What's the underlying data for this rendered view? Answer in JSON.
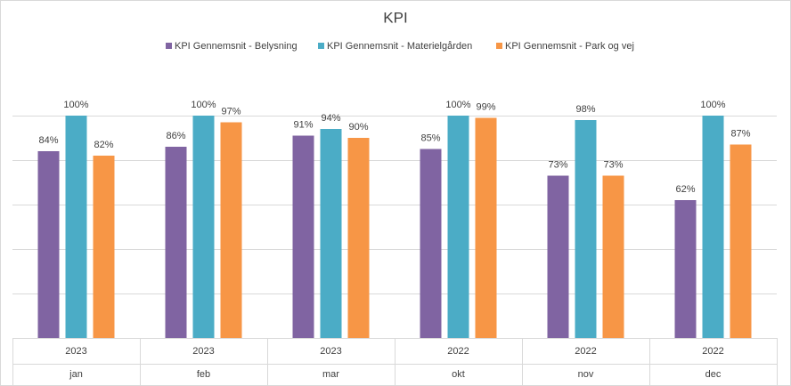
{
  "chart_data": {
    "type": "bar",
    "title": "KPI",
    "categories": [
      "jan",
      "feb",
      "mar",
      "okt",
      "nov",
      "dec"
    ],
    "category_groups": [
      "2023",
      "2023",
      "2023",
      "2022",
      "2022",
      "2022"
    ],
    "series": [
      {
        "name": "KPI Gennemsnit - Belysning",
        "color": "#8064a2",
        "values": [
          84,
          86,
          91,
          85,
          73,
          62
        ],
        "value_labels": [
          "84%",
          "86%",
          "91%",
          "85%",
          "73%",
          "62%"
        ]
      },
      {
        "name": "KPI Gennemsnit - Materielgården",
        "color": "#4bacc6",
        "values": [
          100,
          100,
          94,
          100,
          98,
          100
        ],
        "value_labels": [
          "100%",
          "100%",
          "94%",
          "100%",
          "98%",
          "100%"
        ]
      },
      {
        "name": "KPI Gennemsnit - Park og vej",
        "color": "#f79646",
        "values": [
          82,
          97,
          90,
          99,
          73,
          87
        ],
        "value_labels": [
          "82%",
          "97%",
          "90%",
          "99%",
          "73%",
          "87%"
        ]
      }
    ],
    "ylim": [
      0,
      100
    ],
    "yticks": [
      0,
      20,
      40,
      60,
      80,
      100
    ],
    "ytick_labels": false,
    "grid": true,
    "legend": "top"
  }
}
